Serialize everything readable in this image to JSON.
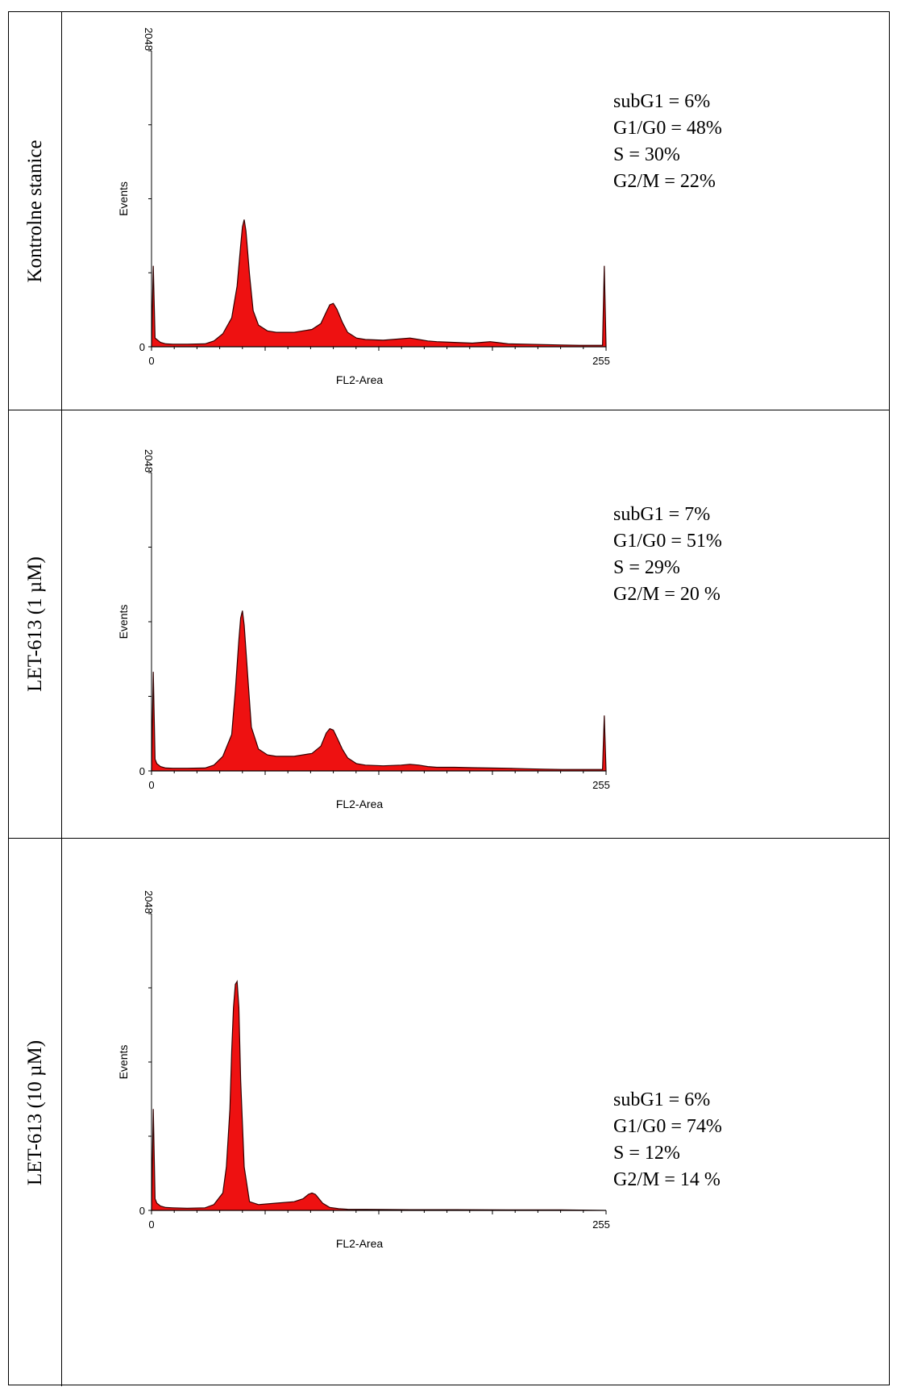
{
  "chart_data": [
    {
      "type": "area",
      "row_label": "Kontrolne stanice",
      "xlabel": "FL2-Area",
      "ylabel": "Events",
      "xlim": [
        0,
        255
      ],
      "ylim": [
        0,
        2048
      ],
      "x_ticks": [
        "0",
        "255"
      ],
      "y_ticks": [
        "0",
        "2048"
      ],
      "fill_color": "#ee1111",
      "series": [
        {
          "x": [
            0,
            1,
            2,
            3,
            5,
            8,
            12,
            20,
            30,
            35,
            40,
            45,
            48,
            50,
            51,
            52,
            53,
            55,
            57,
            60,
            65,
            70,
            80,
            90,
            95,
            98,
            100,
            102,
            104,
            107,
            110,
            115,
            120,
            130,
            140,
            145,
            150,
            155,
            160,
            170,
            180,
            185,
            190,
            195,
            200,
            210,
            220,
            230,
            240,
            250,
            253,
            254,
            255
          ],
          "y": [
            0,
            560,
            60,
            50,
            30,
            20,
            18,
            18,
            20,
            40,
            90,
            200,
            420,
            700,
            830,
            880,
            800,
            500,
            250,
            150,
            110,
            100,
            100,
            120,
            160,
            240,
            290,
            300,
            260,
            170,
            100,
            60,
            50,
            45,
            55,
            60,
            50,
            40,
            35,
            30,
            25,
            30,
            35,
            28,
            20,
            18,
            15,
            12,
            10,
            10,
            10,
            560,
            0
          ]
        }
      ],
      "annotations": [
        "subG1 = 6%",
        "G1/G0 = 48%",
        "S = 30%",
        "G2/M = 22%"
      ]
    },
    {
      "type": "area",
      "row_label": "LET-613 (1 µM)",
      "xlabel": "FL2-Area",
      "ylabel": "Events",
      "xlim": [
        0,
        255
      ],
      "ylim": [
        0,
        2048
      ],
      "x_ticks": [
        "0",
        "255"
      ],
      "y_ticks": [
        "0",
        "2048"
      ],
      "fill_color": "#ee1111",
      "series": [
        {
          "x": [
            0,
            1,
            2,
            3,
            5,
            8,
            12,
            20,
            30,
            35,
            40,
            45,
            47,
            49,
            50,
            51,
            52,
            54,
            56,
            60,
            65,
            70,
            80,
            90,
            95,
            98,
            100,
            102,
            104,
            107,
            110,
            115,
            120,
            130,
            140,
            145,
            150,
            155,
            160,
            170,
            180,
            190,
            200,
            210,
            220,
            230,
            240,
            250,
            253,
            254,
            255
          ],
          "y": [
            0,
            680,
            80,
            50,
            30,
            20,
            18,
            18,
            20,
            40,
            100,
            250,
            550,
            900,
            1050,
            1100,
            1000,
            650,
            300,
            150,
            110,
            100,
            100,
            120,
            170,
            260,
            290,
            280,
            230,
            150,
            90,
            50,
            40,
            35,
            40,
            45,
            40,
            30,
            25,
            25,
            22,
            20,
            18,
            15,
            12,
            10,
            10,
            10,
            10,
            380,
            0
          ]
        }
      ],
      "annotations": [
        "subG1 = 7%",
        "G1/G0 = 51%",
        "S = 29%",
        "G2/M = 20 %"
      ]
    },
    {
      "type": "area",
      "row_label": "LET-613 (10 µM)",
      "xlabel": "FL2-Area",
      "ylabel": "Events",
      "xlim": [
        0,
        255
      ],
      "ylim": [
        0,
        2048
      ],
      "x_ticks": [
        "0",
        "255"
      ],
      "y_ticks": [
        "0",
        "2048"
      ],
      "fill_color": "#ee1111",
      "series": [
        {
          "x": [
            0,
            1,
            2,
            3,
            5,
            8,
            12,
            20,
            30,
            35,
            40,
            42,
            44,
            45,
            46,
            47,
            48,
            49,
            50,
            52,
            55,
            60,
            70,
            80,
            85,
            88,
            90,
            92,
            94,
            96,
            100,
            105,
            110,
            130,
            150,
            170,
            200,
            230,
            255
          ],
          "y": [
            0,
            700,
            80,
            50,
            30,
            20,
            18,
            15,
            18,
            40,
            120,
            300,
            700,
            1100,
            1400,
            1560,
            1580,
            1400,
            900,
            300,
            60,
            40,
            50,
            60,
            80,
            110,
            120,
            110,
            80,
            50,
            20,
            12,
            8,
            6,
            5,
            5,
            4,
            4,
            0
          ]
        }
      ],
      "annotations": [
        "subG1 = 6%",
        "G1/G0 = 74%",
        "S = 12%",
        "G2/M = 14 %"
      ]
    }
  ]
}
